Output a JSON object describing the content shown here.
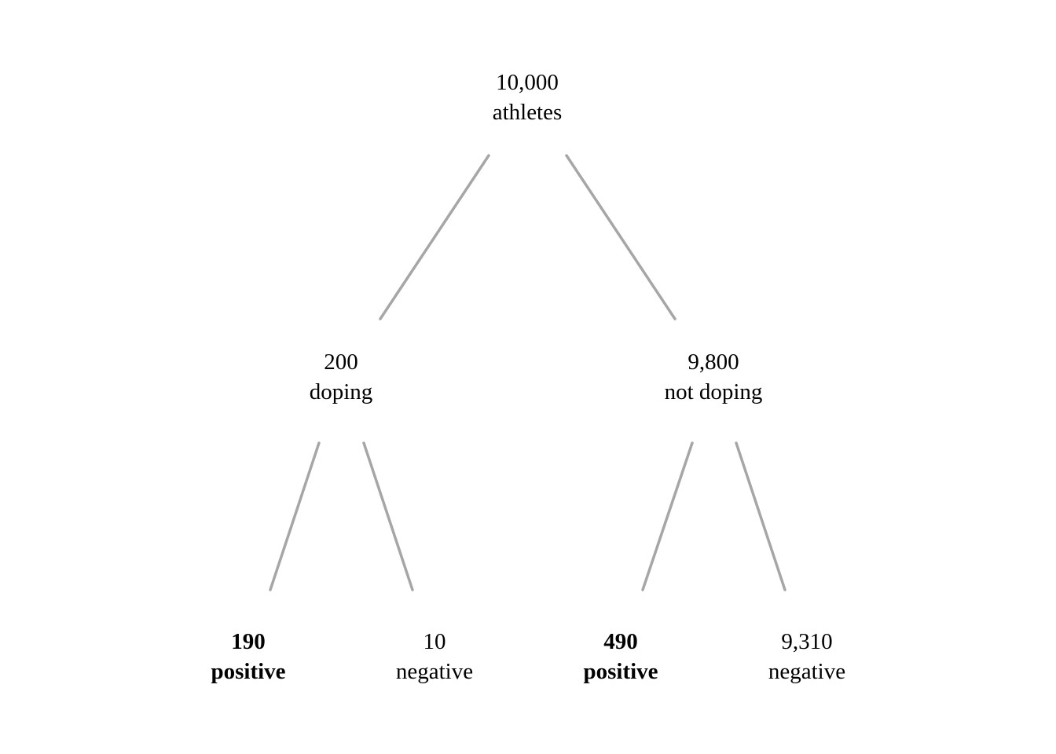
{
  "tree": {
    "root": {
      "count": "10,000",
      "label": "athletes"
    },
    "doping": {
      "count": "200",
      "label": "doping"
    },
    "not_doping": {
      "count": "9,800",
      "label": "not doping"
    },
    "doping_positive": {
      "count": "190",
      "label": "positive",
      "emphasized": true
    },
    "doping_negative": {
      "count": "10",
      "label": "negative",
      "emphasized": false
    },
    "not_doping_positive": {
      "count": "490",
      "label": "positive",
      "emphasized": true
    },
    "not_doping_negative": {
      "count": "9,310",
      "label": "negative",
      "emphasized": false
    }
  },
  "colors": {
    "edge": "#a6a6a6",
    "text": "#000000",
    "background": "#ffffff"
  }
}
